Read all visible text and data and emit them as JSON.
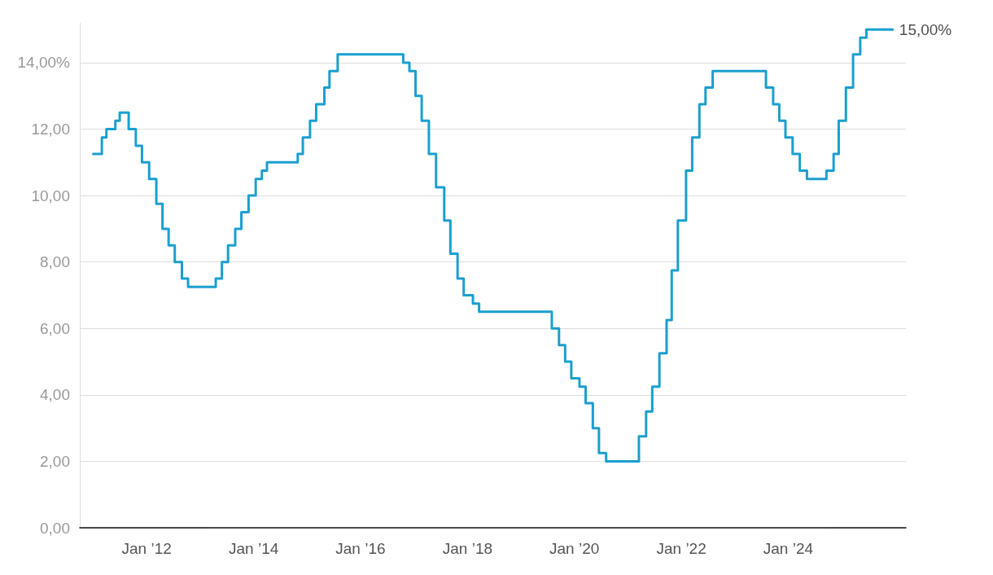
{
  "chart_data": {
    "type": "step",
    "color": "#1a9fcf",
    "x": [
      "2011-01",
      "2011-03",
      "2011-04",
      "2011-06",
      "2011-07",
      "2011-08-31",
      "2011-10-19",
      "2011-11-30",
      "2012-01-18",
      "2012-03-07",
      "2012-04-18",
      "2012-05-30",
      "2012-07-11",
      "2012-08-29",
      "2012-10-10",
      "2013-04-17",
      "2013-05-29",
      "2013-07-10",
      "2013-08-28",
      "2013-10-09",
      "2013-11-27",
      "2014-01-15",
      "2014-02-26",
      "2014-04-02",
      "2014-10-29",
      "2014-12-03",
      "2015-01-21",
      "2015-03-04",
      "2015-04-29",
      "2015-06-03",
      "2015-07-29",
      "2016-10-19",
      "2016-11-30",
      "2017-01-11",
      "2017-02-22",
      "2017-04-12",
      "2017-05-31",
      "2017-07-26",
      "2017-09-06",
      "2017-10-25",
      "2017-12-06",
      "2018-02-07",
      "2018-03-21",
      "2019-07-31",
      "2019-09-18",
      "2019-10-30",
      "2019-12-11",
      "2020-02-05",
      "2020-03-18",
      "2020-05-06",
      "2020-06-17",
      "2020-08-05",
      "2021-03-17",
      "2021-05-05",
      "2021-06-16",
      "2021-08-04",
      "2021-09-22",
      "2021-10-27",
      "2021-12-08",
      "2022-02-02",
      "2022-03-16",
      "2022-05-04",
      "2022-06-15",
      "2022-08-03",
      "2023-08-02",
      "2023-09-20",
      "2023-11-01",
      "2023-12-13",
      "2024-01-31",
      "2024-03-20",
      "2024-05-08",
      "2024-09-18",
      "2024-11-06",
      "2024-12-11",
      "2025-01-29",
      "2025-03-19",
      "2025-05-07",
      "2025-06-18",
      "2025-12-15"
    ],
    "values": [
      11.25,
      11.75,
      12.0,
      12.25,
      12.5,
      12.0,
      11.5,
      11.0,
      10.5,
      9.75,
      9.0,
      8.5,
      8.0,
      7.5,
      7.25,
      7.5,
      8.0,
      8.5,
      9.0,
      9.5,
      10.0,
      10.5,
      10.75,
      11.0,
      11.25,
      11.75,
      12.25,
      12.75,
      13.25,
      13.75,
      14.25,
      14.0,
      13.75,
      13.0,
      12.25,
      11.25,
      10.25,
      9.25,
      8.25,
      7.5,
      7.0,
      6.75,
      6.5,
      6.0,
      5.5,
      5.0,
      4.5,
      4.25,
      3.75,
      3.0,
      2.25,
      2.0,
      2.75,
      3.5,
      4.25,
      5.25,
      6.25,
      7.75,
      9.25,
      10.75,
      11.75,
      12.75,
      13.25,
      13.75,
      13.25,
      12.75,
      12.25,
      11.75,
      11.25,
      10.75,
      10.5,
      10.75,
      11.25,
      12.25,
      13.25,
      14.25,
      14.75,
      15.0,
      15.0
    ],
    "xlim": [
      "2010-10-01",
      "2026-03-15"
    ],
    "xticks": [
      {
        "value": "2012-01-01",
        "label": "Jan ’12"
      },
      {
        "value": "2014-01-01",
        "label": "Jan ’14"
      },
      {
        "value": "2016-01-01",
        "label": "Jan ’16"
      },
      {
        "value": "2018-01-01",
        "label": "Jan ’18"
      },
      {
        "value": "2020-01-01",
        "label": "Jan ’20"
      },
      {
        "value": "2022-01-01",
        "label": "Jan ’22"
      },
      {
        "value": "2024-01-01",
        "label": "Jan ’24"
      }
    ],
    "yticks": [
      {
        "value": 0,
        "label": "0,00"
      },
      {
        "value": 2,
        "label": "2,00"
      },
      {
        "value": 4,
        "label": "4,00"
      },
      {
        "value": 6,
        "label": "6,00"
      },
      {
        "value": 8,
        "label": "8,00"
      },
      {
        "value": 10,
        "label": "10,00"
      },
      {
        "value": 12,
        "label": "12,00"
      },
      {
        "value": 14,
        "label": "14,00%"
      }
    ],
    "annotations": [
      {
        "text": "15,00%",
        "x": "2025-12-15",
        "y": 15.0
      }
    ],
    "ylim": [
      0,
      15.2
    ],
    "grid": "y",
    "line_style": "solid",
    "marker": "none"
  }
}
